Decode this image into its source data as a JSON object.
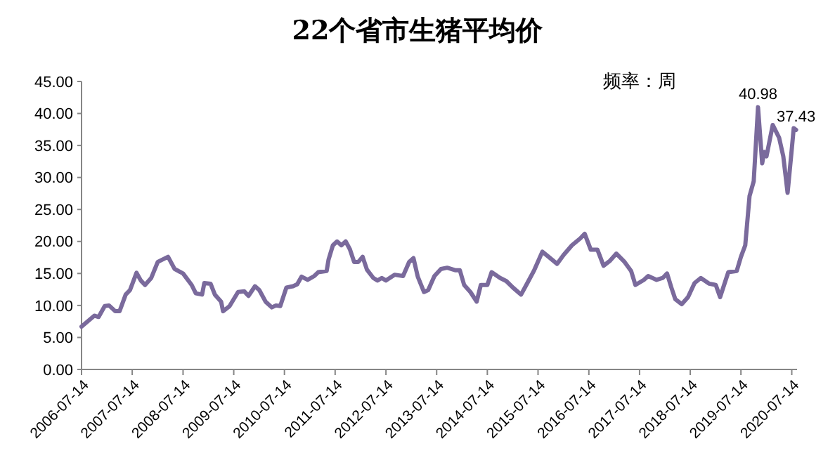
{
  "chart_data": {
    "type": "line",
    "title": "22个省市生猪平均价",
    "annotations": [
      "频率：周",
      {
        "text": "40.98",
        "x": "2019-11-14",
        "y": 40.98
      },
      {
        "text": "37.43",
        "x": "2020-08-14",
        "y": 37.43
      }
    ],
    "x": [
      "2006-07-14",
      "2006-10-14",
      "2006-11-14",
      "2006-12-28",
      "2007-01-28",
      "2007-03-14",
      "2007-04-14",
      "2007-05-28",
      "2007-06-28",
      "2007-08-14",
      "2007-09-14",
      "2007-10-14",
      "2007-11-28",
      "2008-01-14",
      "2008-03-28",
      "2008-05-14",
      "2008-07-14",
      "2008-09-14",
      "2008-10-14",
      "2008-11-28",
      "2008-12-14",
      "2009-01-28",
      "2009-02-28",
      "2009-04-14",
      "2009-04-28",
      "2009-06-14",
      "2009-08-14",
      "2009-09-28",
      "2009-10-28",
      "2009-12-14",
      "2010-01-14",
      "2010-02-28",
      "2010-04-14",
      "2010-05-14",
      "2010-06-14",
      "2010-07-28",
      "2010-09-14",
      "2010-10-14",
      "2010-11-14",
      "2010-12-28",
      "2011-02-14",
      "2011-03-14",
      "2011-05-14",
      "2011-05-28",
      "2011-06-28",
      "2011-07-28",
      "2011-08-28",
      "2011-09-28",
      "2011-10-28",
      "2011-11-28",
      "2011-12-28",
      "2012-01-28",
      "2012-02-28",
      "2012-04-14",
      "2012-05-14",
      "2012-06-14",
      "2012-07-14",
      "2012-09-14",
      "2012-11-14",
      "2012-12-28",
      "2013-01-28",
      "2013-02-28",
      "2013-04-14",
      "2013-05-14",
      "2013-06-28",
      "2013-08-14",
      "2013-09-28",
      "2013-11-28",
      "2013-12-28",
      "2014-01-28",
      "2014-03-14",
      "2014-04-28",
      "2014-05-28",
      "2014-07-14",
      "2014-08-14",
      "2014-10-14",
      "2014-11-28",
      "2015-01-14",
      "2015-03-14",
      "2015-04-28",
      "2015-06-14",
      "2015-08-14",
      "2015-09-28",
      "2015-11-28",
      "2016-01-14",
      "2016-03-14",
      "2016-05-14",
      "2016-06-14",
      "2016-07-28",
      "2016-09-14",
      "2016-10-28",
      "2016-12-14",
      "2017-01-28",
      "2017-03-28",
      "2017-05-14",
      "2017-06-14",
      "2017-08-14",
      "2017-09-14",
      "2017-11-14",
      "2017-12-28",
      "2018-01-28",
      "2018-02-28",
      "2018-03-28",
      "2018-05-14",
      "2018-06-28",
      "2018-08-14",
      "2018-09-28",
      "2018-11-28",
      "2019-01-14",
      "2019-02-14",
      "2019-04-14",
      "2019-06-14",
      "2019-07-14",
      "2019-08-14",
      "2019-09-14",
      "2019-10-14",
      "2019-11-14",
      "2019-12-14",
      "2019-12-28",
      "2020-01-14",
      "2020-02-28",
      "2020-04-14",
      "2020-05-14",
      "2020-06-14",
      "2020-07-14",
      "2020-07-28",
      "2020-08-14"
    ],
    "series": [
      {
        "color": "#7a6a9c",
        "values": [
          6.7,
          8.4,
          8.2,
          9.9,
          10.0,
          9.1,
          9.1,
          11.7,
          12.4,
          15.1,
          13.9,
          13.2,
          14.3,
          16.8,
          17.6,
          15.7,
          15.0,
          13.2,
          11.9,
          11.7,
          13.5,
          13.4,
          11.7,
          10.6,
          9.1,
          9.9,
          12.1,
          12.2,
          11.5,
          13.0,
          12.4,
          10.6,
          9.7,
          10.0,
          9.9,
          12.8,
          13.0,
          13.3,
          14.5,
          14.0,
          14.6,
          15.2,
          15.4,
          17.2,
          19.4,
          20.0,
          19.4,
          20.0,
          18.8,
          16.8,
          16.8,
          17.6,
          15.6,
          14.3,
          13.9,
          14.3,
          13.9,
          14.8,
          14.6,
          16.8,
          17.4,
          14.5,
          12.1,
          12.4,
          14.6,
          15.7,
          15.9,
          15.5,
          15.5,
          13.2,
          12.1,
          10.6,
          13.2,
          13.2,
          15.2,
          14.3,
          13.8,
          12.8,
          11.7,
          13.5,
          15.4,
          18.4,
          17.6,
          16.5,
          17.9,
          19.4,
          20.5,
          21.2,
          18.7,
          18.7,
          16.2,
          17.0,
          18.1,
          16.8,
          15.4,
          13.2,
          14.0,
          14.6,
          14.0,
          14.3,
          15.0,
          12.8,
          11.0,
          10.2,
          11.3,
          13.5,
          14.3,
          13.4,
          13.2,
          11.3,
          15.2,
          15.4,
          17.6,
          19.4,
          27.1,
          29.4,
          40.98,
          32.2,
          34.0,
          33.3,
          38.2,
          36.2,
          33.3,
          27.6,
          34.4,
          37.7,
          37.43
        ]
      }
    ],
    "xlim": [
      "2006-07-14",
      "2020-08-21"
    ],
    "xticks": [
      {
        "value": "2006-07-14",
        "label": "2006-07-14"
      },
      {
        "value": "2007-07-14",
        "label": "2007-07-14"
      },
      {
        "value": "2008-07-14",
        "label": "2008-07-14"
      },
      {
        "value": "2009-07-14",
        "label": "2009-07-14"
      },
      {
        "value": "2010-07-14",
        "label": "2010-07-14"
      },
      {
        "value": "2011-07-14",
        "label": "2011-07-14"
      },
      {
        "value": "2012-07-14",
        "label": "2012-07-14"
      },
      {
        "value": "2013-07-14",
        "label": "2013-07-14"
      },
      {
        "value": "2014-07-14",
        "label": "2014-07-14"
      },
      {
        "value": "2015-07-14",
        "label": "2015-07-14"
      },
      {
        "value": "2016-07-14",
        "label": "2016-07-14"
      },
      {
        "value": "2017-07-14",
        "label": "2017-07-14"
      },
      {
        "value": "2018-07-14",
        "label": "2018-07-14"
      },
      {
        "value": "2019-07-14",
        "label": "2019-07-14"
      },
      {
        "value": "2020-07-14",
        "label": "2020-07-14"
      }
    ],
    "ylim": [
      0,
      45
    ],
    "yticks": [
      {
        "value": 0,
        "label": "0.00"
      },
      {
        "value": 5,
        "label": "5.00"
      },
      {
        "value": 10,
        "label": "10.00"
      },
      {
        "value": 15,
        "label": "15.00"
      },
      {
        "value": 20,
        "label": "20.00"
      },
      {
        "value": 25,
        "label": "25.00"
      },
      {
        "value": 30,
        "label": "30.00"
      },
      {
        "value": 35,
        "label": "35.00"
      },
      {
        "value": 40,
        "label": "40.00"
      },
      {
        "value": 45,
        "label": "45.00"
      }
    ],
    "grid": false,
    "marker": "none",
    "line_style": "solid"
  }
}
